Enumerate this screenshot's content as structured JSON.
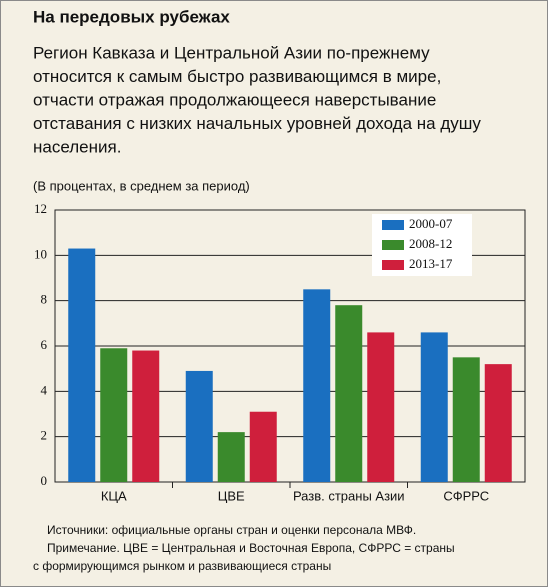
{
  "chart_data": {
    "type": "bar",
    "title": "На передовых рубежах",
    "subtitle_lines": [
      "Регион Кавказа и Центральной Азии  по-прежнему",
      "относится к самым быстро развивающимся в мире,",
      "отчасти отражая продолжающееся наверстывание",
      "отставания с низких начальных уровней дохода на душу",
      "населения."
    ],
    "unit_note": "(В процентах, в среднем за период)",
    "categories": [
      "КЦА",
      "ЦВЕ",
      "Разв. страны Азии",
      "СФРРС"
    ],
    "series": [
      {
        "name": "2000-07",
        "color": "#1a6fc0",
        "values": [
          10.3,
          4.9,
          8.5,
          6.6
        ]
      },
      {
        "name": "2008-12",
        "color": "#3a8a2c",
        "values": [
          5.9,
          2.2,
          7.8,
          5.5
        ]
      },
      {
        "name": "2013-17",
        "color": "#cf1f3c",
        "values": [
          5.8,
          3.1,
          6.6,
          5.2
        ]
      }
    ],
    "ylim": [
      0,
      12
    ],
    "yticks": [
      0,
      2,
      4,
      6,
      8,
      10,
      12
    ],
    "grid": true,
    "legend": "top-right",
    "footnote_lines": [
      "Источники: официальные органы стран и оценки персонала МВФ.",
      "Примечание. ЦВЕ = Центральная и Восточная Европа, СФРРС = страны",
      "с формирующимся рынком и развивающиеся страны"
    ]
  }
}
